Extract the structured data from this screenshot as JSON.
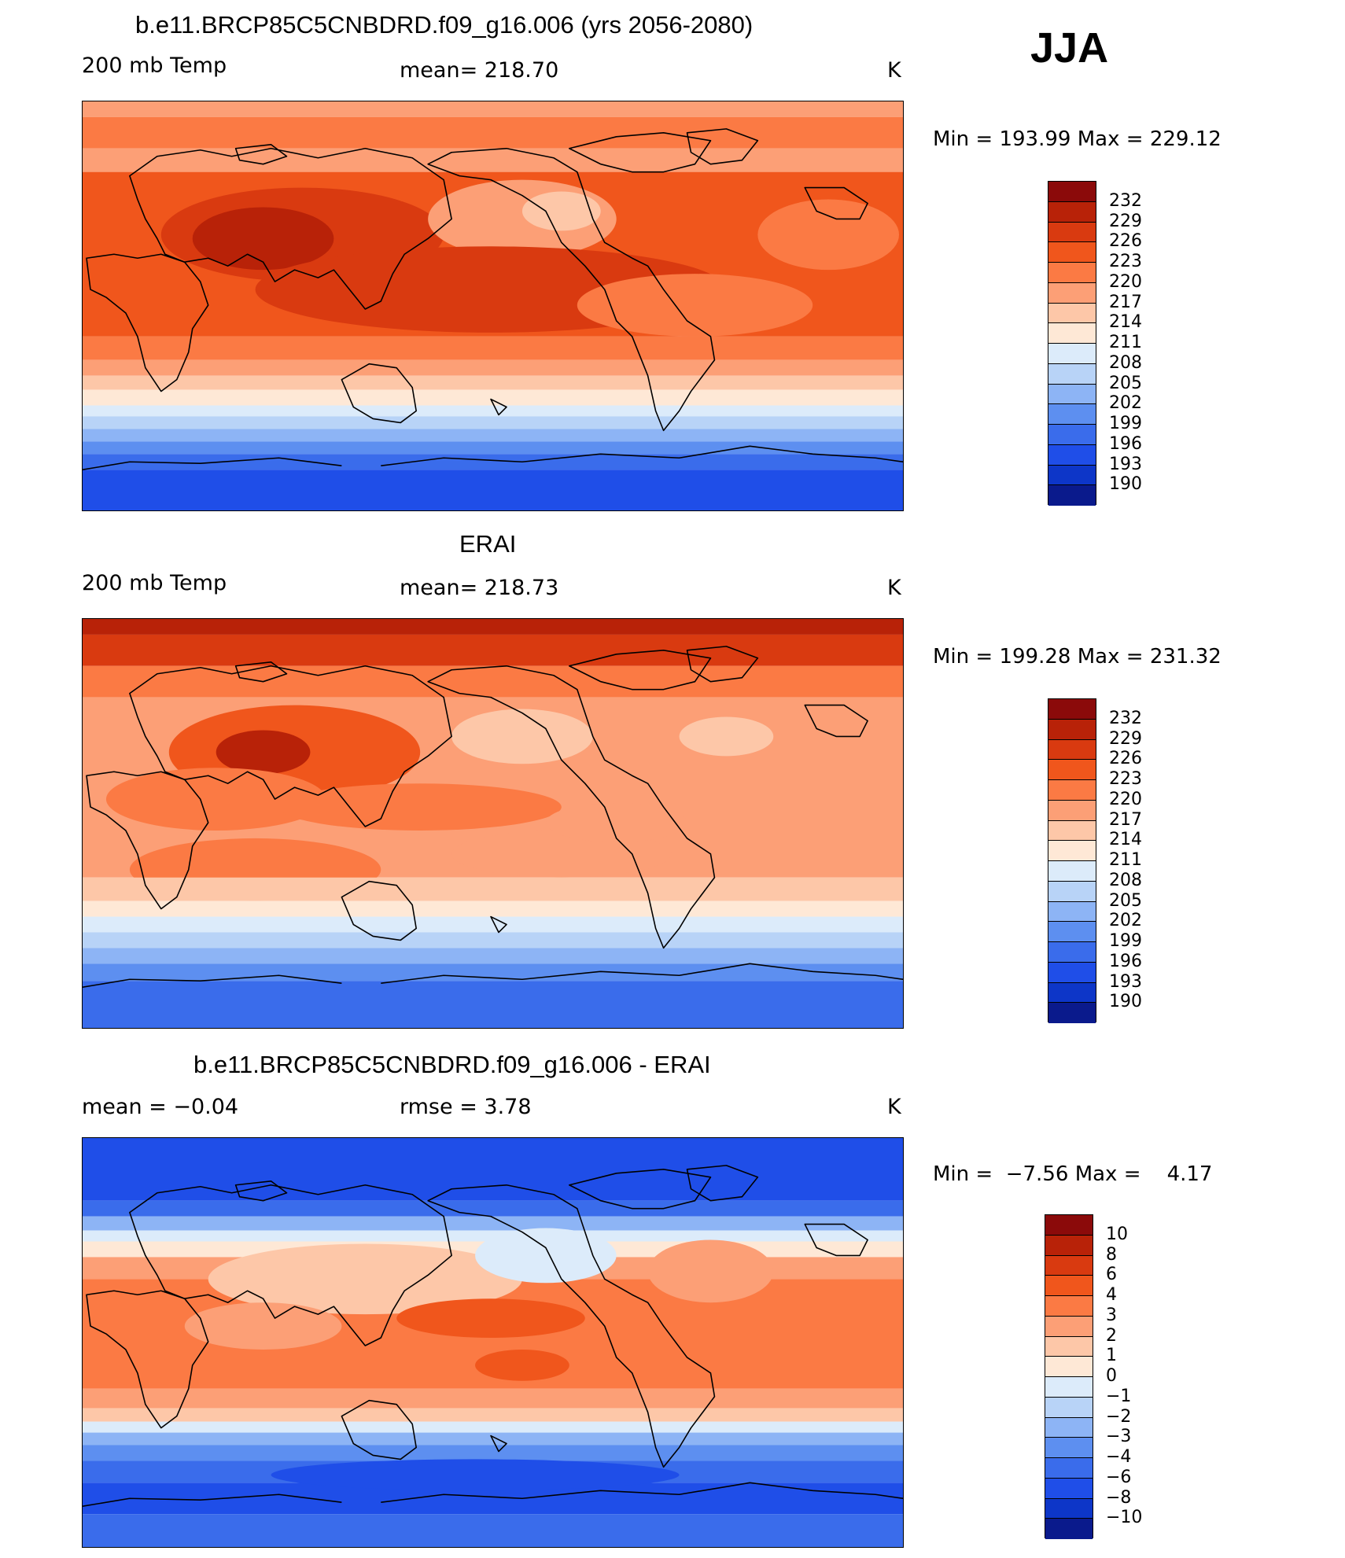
{
  "season": "JJA",
  "panels": [
    {
      "title": "b.e11.BRCP85C5CNBDRD.f09_g16.006 (yrs 2056-2080)",
      "left_label": "200 mb Temp",
      "center_label": "mean= 218.70",
      "units": "K",
      "min_label": "Min",
      "min_value": "193.99",
      "max_label": "Max",
      "max_value": "229.12",
      "legend_levels": [
        "232",
        "229",
        "226",
        "223",
        "220",
        "217",
        "214",
        "211",
        "208",
        "205",
        "202",
        "199",
        "196",
        "193",
        "190"
      ],
      "map_kind": "model"
    },
    {
      "title": "ERAI",
      "left_label": "200 mb Temp",
      "center_label": "mean= 218.73",
      "units": "K",
      "min_label": "Min",
      "min_value": "199.28",
      "max_label": "Max",
      "max_value": "231.32",
      "legend_levels": [
        "232",
        "229",
        "226",
        "223",
        "220",
        "217",
        "214",
        "211",
        "208",
        "205",
        "202",
        "199",
        "196",
        "193",
        "190"
      ],
      "map_kind": "obs"
    },
    {
      "title": "b.e11.BRCP85C5CNBDRD.f09_g16.006 - ERAI",
      "left_label": "mean =   −0.04",
      "center_label": "rmse =    3.78",
      "units": "K",
      "min_label": "Min",
      "min_value": "−7.56",
      "max_label": "Max",
      "max_value": "4.17",
      "legend_levels": [
        "10",
        "8",
        "6",
        "4",
        "3",
        "2",
        "1",
        "0",
        "−1",
        "−2",
        "−3",
        "−4",
        "−6",
        "−8",
        "−10"
      ],
      "map_kind": "diff"
    }
  ],
  "colors": {
    "palette_top_to_bottom": [
      "#8b0a0a",
      "#b82208",
      "#d93a10",
      "#f0561c",
      "#fb7a44",
      "#fc9f76",
      "#fdc7a8",
      "#fee8d6",
      "#dcebfa",
      "#b8d3f7",
      "#8db4f5",
      "#5d8ff0",
      "#3a6ceb",
      "#1f4ee8",
      "#0d36c8",
      "#0a1a8c"
    ],
    "coastline": "#000000"
  }
}
